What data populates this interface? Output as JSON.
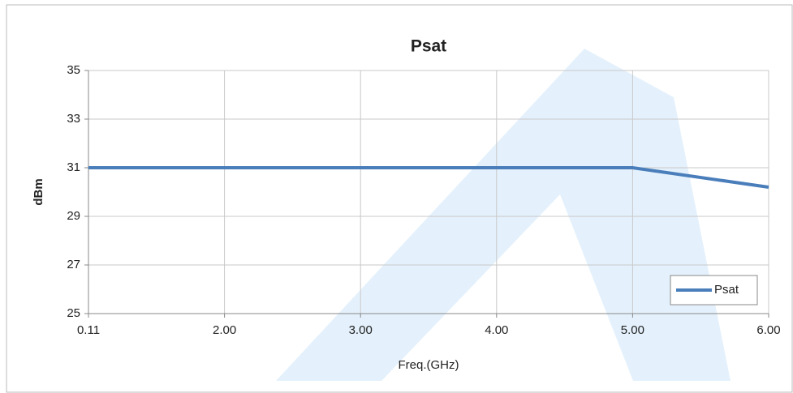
{
  "chart_data": {
    "type": "line",
    "title": "Psat",
    "xlabel": "Freq.(GHz)",
    "ylabel": "dBm",
    "categories": [
      "0.11",
      "2.00",
      "3.00",
      "4.00",
      "5.00",
      "6.00"
    ],
    "series": [
      {
        "name": "Psat",
        "color": "#4a7ebb",
        "values": [
          31,
          31,
          31,
          31,
          31,
          30.2
        ]
      }
    ],
    "ylim": [
      25,
      35
    ],
    "yticks": [
      25,
      27,
      29,
      31,
      33,
      35
    ],
    "grid": true,
    "legend": "lower right"
  }
}
